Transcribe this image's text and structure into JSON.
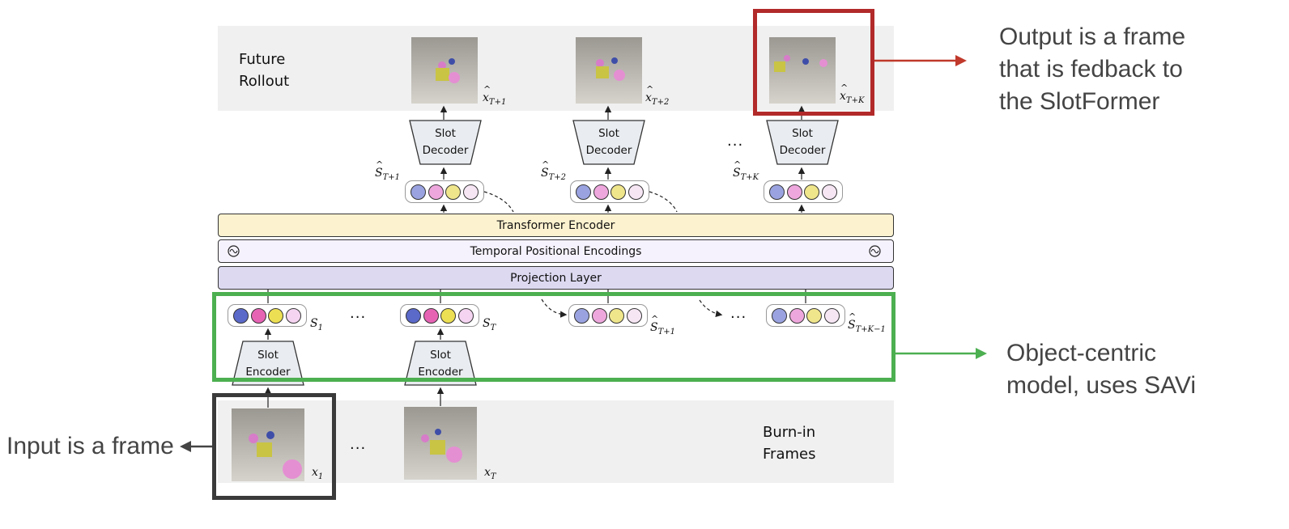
{
  "colors": {
    "band": "#f0f0f0",
    "transformer_fill": "#fdf2cf",
    "temporal_fill": "#f6f2fd",
    "projection_fill": "#dcd9f1",
    "output_box": "#b22a2a",
    "savi_box": "#4caf50",
    "input_box": "#3a3a3a",
    "slot_blue": "#5b69c9",
    "slot_pink": "#e663b4",
    "slot_yellow": "#ecdf53",
    "slot_light": "#f4d4f1",
    "slot_blue_pred": "#9aa3e0",
    "slot_pink_pred": "#eea7dc",
    "slot_yellow_pred": "#efe58b"
  },
  "future_rollout": {
    "line1": "Future",
    "line2": "Rollout"
  },
  "burn_in": {
    "line1": "Burn-in",
    "line2": "Frames"
  },
  "layers": {
    "transformer": "Transformer Encoder",
    "temporal": "Temporal Positional Encodings",
    "projection": "Projection Layer"
  },
  "decoder": {
    "line1": "Slot",
    "line2": "Decoder"
  },
  "encoder": {
    "line1": "Slot",
    "line2": "Encoder"
  },
  "ellipsis": "...",
  "symbols": {
    "x_hat": "x",
    "s_hat": "S",
    "s": "S",
    "x": "x",
    "sub_T1": "T+1",
    "sub_T2": "T+2",
    "sub_TK": "T+K",
    "sub_TK1": "T+K−1",
    "sub_1": "1",
    "sub_T": "T"
  },
  "annotations": {
    "output": [
      "Output is a frame",
      "that is fedback to",
      "the SlotFormer"
    ],
    "object_centric": [
      "Object-centric",
      "model, uses SAVi"
    ],
    "input": "Input is a frame"
  },
  "icons": [
    "sine-wave-icon"
  ]
}
